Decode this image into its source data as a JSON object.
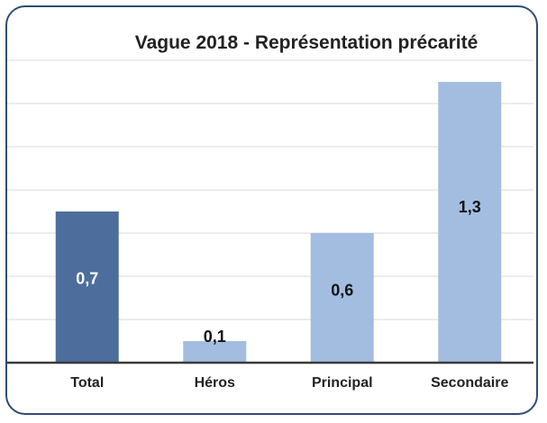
{
  "chart_data": {
    "type": "bar",
    "title": "Vague 2018 - Représentation précarité",
    "categories": [
      "Total",
      "Héros",
      "Principal",
      "Secondaire"
    ],
    "values": [
      0.7,
      0.1,
      0.6,
      1.3
    ],
    "value_labels": [
      "0,7",
      "0,1",
      "0,6",
      "1,3"
    ],
    "colors": [
      "#4d6e9c",
      "#a3bde0",
      "#a3bde0",
      "#a3bde0"
    ],
    "ylim": [
      0,
      1.4
    ],
    "yticks": [
      0,
      0.2,
      0.4,
      0.6,
      0.8,
      1,
      1.2,
      1.4
    ],
    "grid": true
  }
}
